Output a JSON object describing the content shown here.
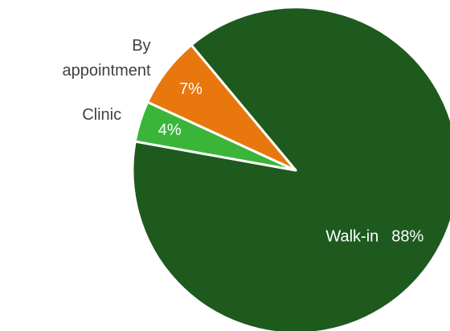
{
  "chart_data": {
    "type": "pie",
    "categories": [
      "Walk-in",
      "Clinic",
      "By appointment"
    ],
    "values": [
      88,
      4,
      7
    ],
    "value_labels": [
      "88%",
      "4%",
      "7%"
    ],
    "colors": [
      "#1e5a1e",
      "#3ab53a",
      "#e8780e"
    ],
    "start_angle": -39.8
  }
}
